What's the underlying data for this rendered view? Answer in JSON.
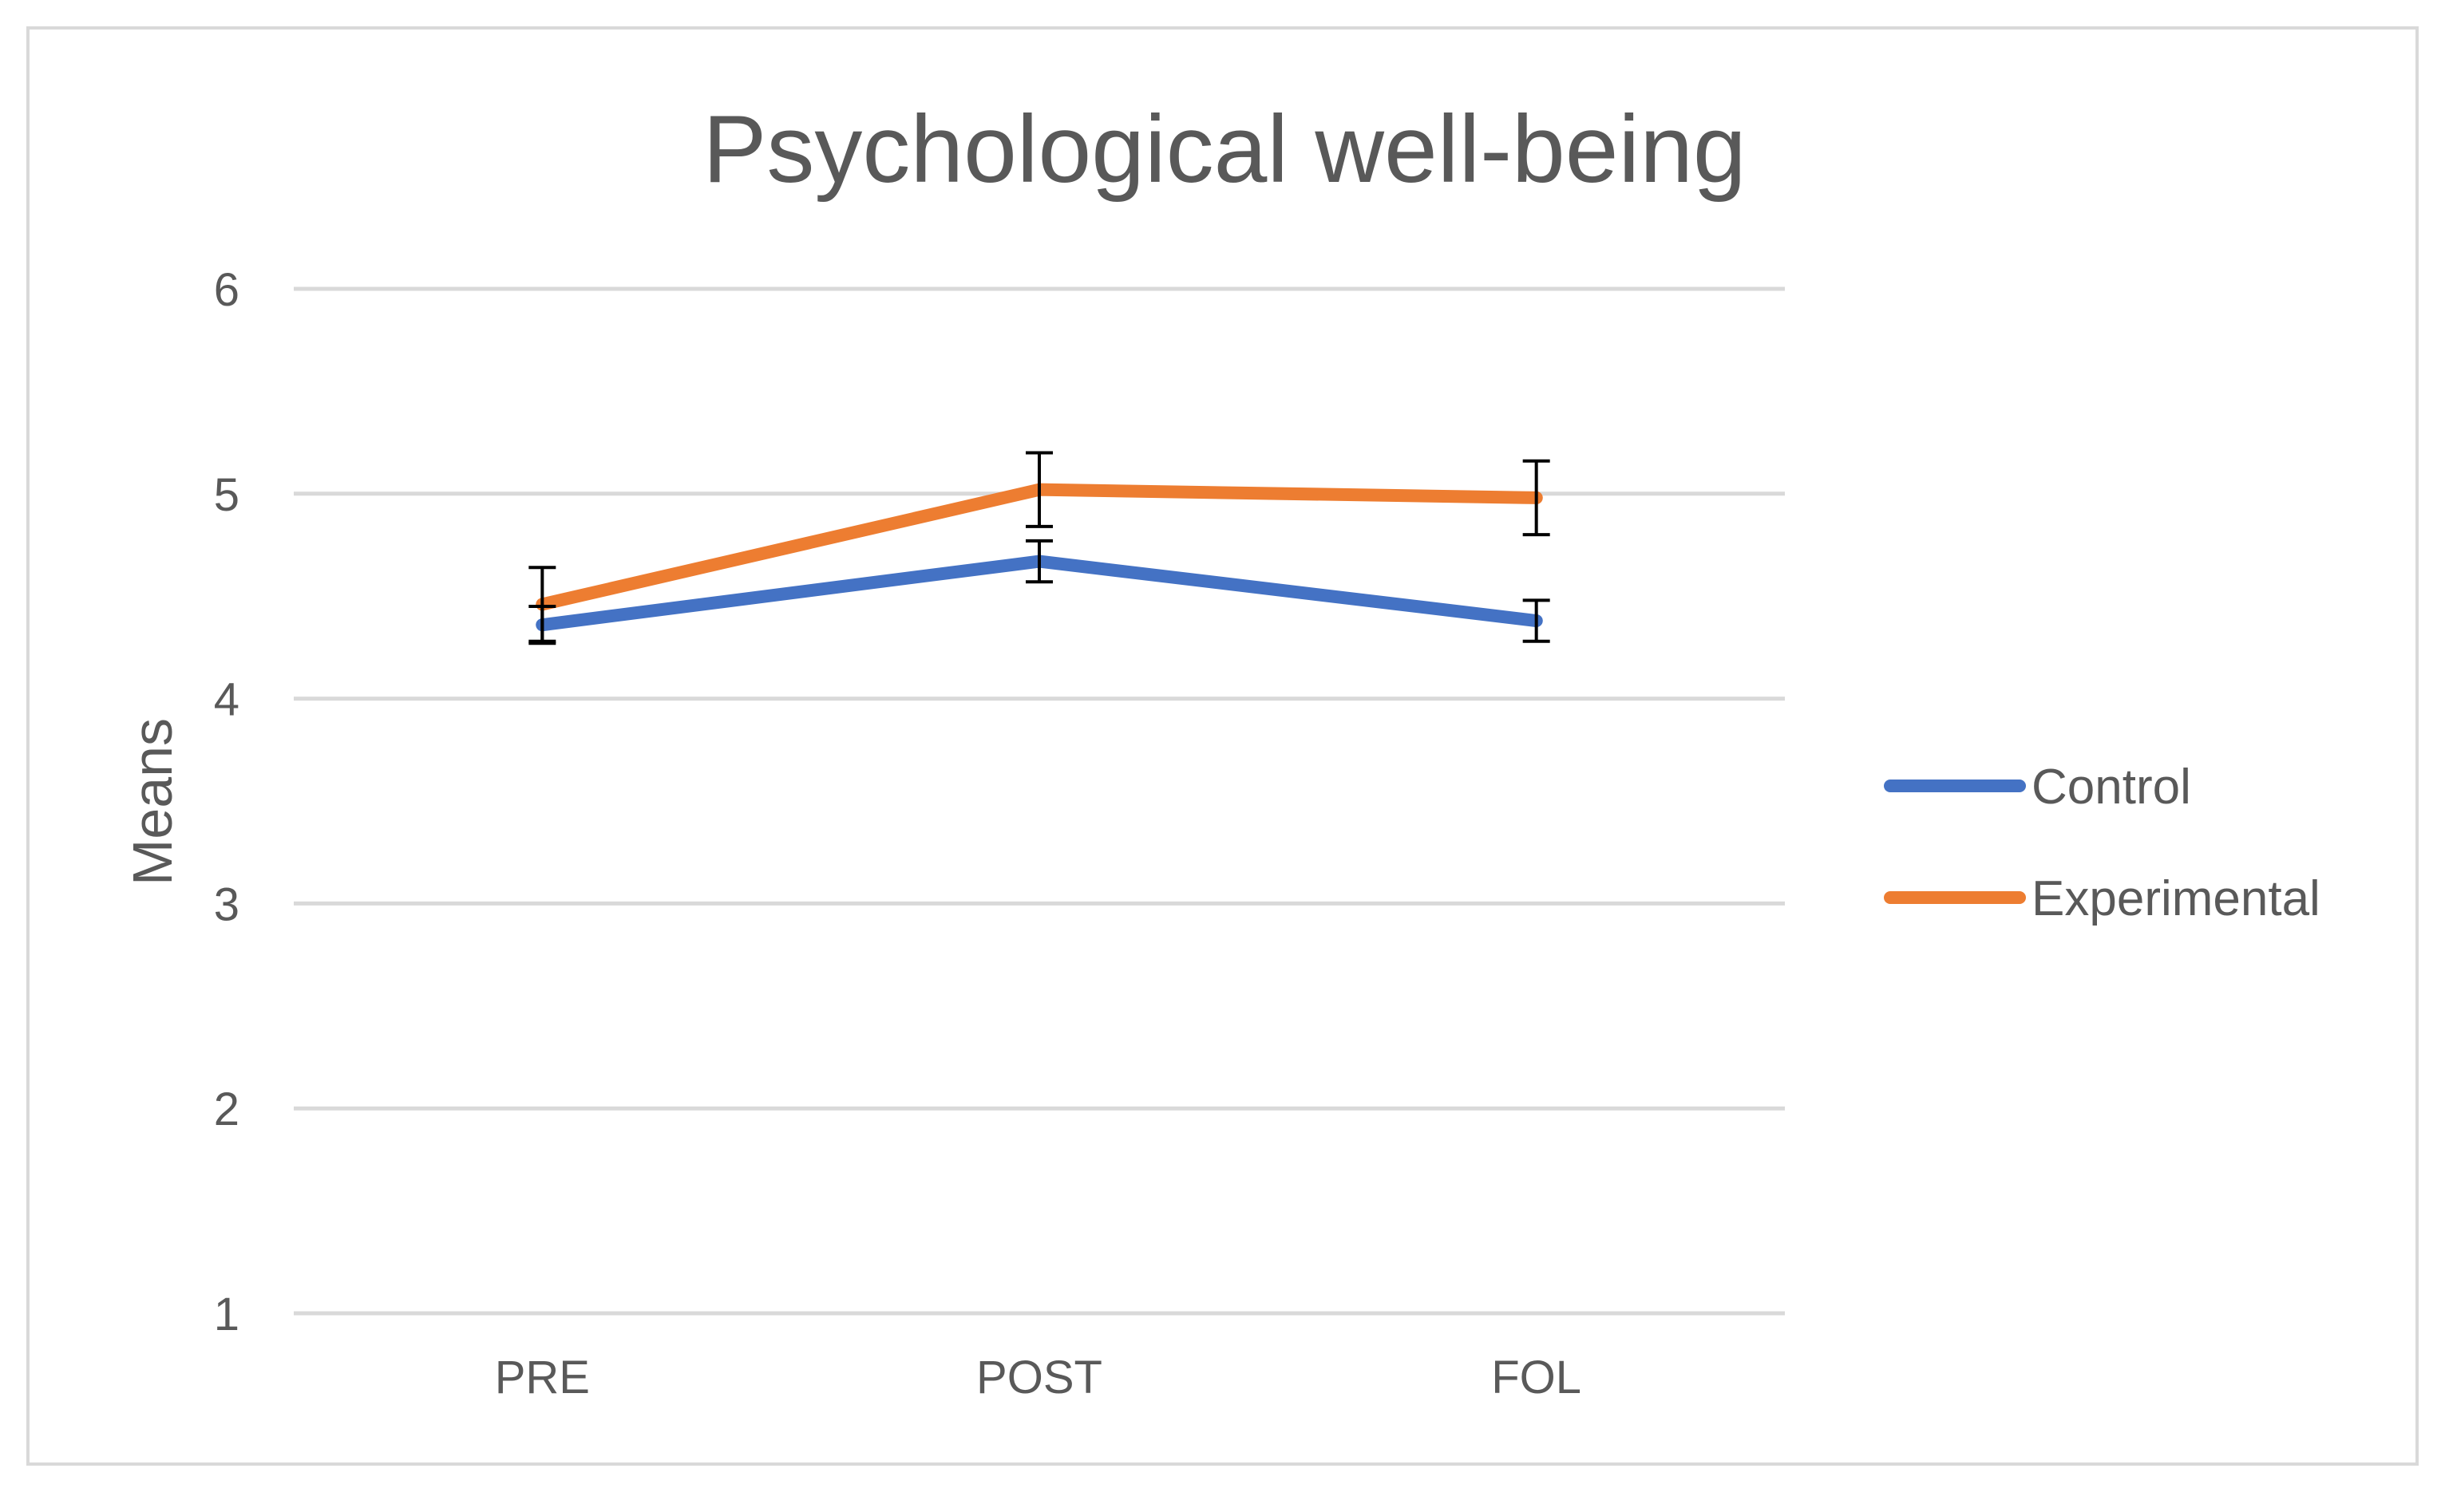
{
  "chart_data": {
    "type": "line",
    "title": "Psychological well-being",
    "xlabel": "",
    "ylabel": "Means",
    "categories": [
      "PRE",
      "POST",
      "FOL"
    ],
    "ylim": [
      1,
      6
    ],
    "yticks": [
      "1",
      "2",
      "3",
      "4",
      "5",
      "6"
    ],
    "grid": true,
    "legend_position": "right",
    "series": [
      {
        "name": "Control",
        "color": "#4472c4",
        "values": [
          4.36,
          4.67,
          4.38
        ],
        "error": [
          0.09,
          0.1,
          0.1
        ]
      },
      {
        "name": "Experimental",
        "color": "#ed7d31",
        "values": [
          4.46,
          5.02,
          4.98
        ],
        "error": [
          0.18,
          0.18,
          0.18
        ]
      }
    ]
  }
}
